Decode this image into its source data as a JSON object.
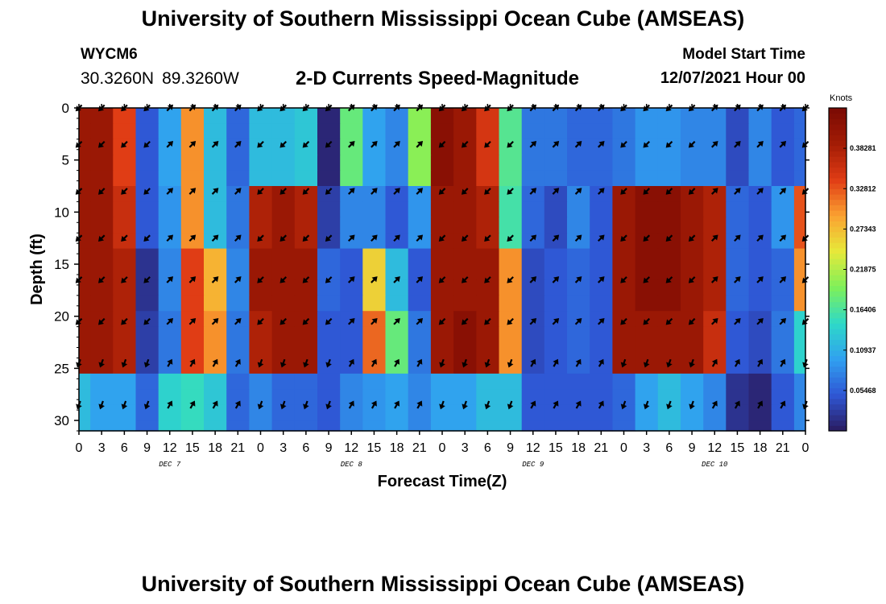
{
  "header": {
    "title": "University of Southern Mississippi Ocean Cube (AMSEAS)",
    "station": "WYCM6",
    "lat": "30.3260N",
    "lon": "89.3260W",
    "subtitle": "2-D Currents Speed-Magnitude",
    "model_start_label": "Model Start Time",
    "model_start_value": "12/07/2021 Hour 00"
  },
  "footer": {
    "title": "University of Southern Mississippi Ocean Cube (AMSEAS)"
  },
  "colors": {
    "colormap": [
      "#2a1a5e",
      "#2f56d4",
      "#30a0f0",
      "#2ed9c8",
      "#7ef05a",
      "#e6e93a",
      "#fba231",
      "#e03c15",
      "#a31c05",
      "#7a0a04"
    ],
    "arrow": "#000000",
    "frame": "#000000"
  },
  "chart_data": {
    "type": "heatmap",
    "title": "2-D Currents Speed-Magnitude",
    "xlabel": "Forecast Time(Z)",
    "ylabel": "Depth (ft)",
    "x_tick_labels": [
      "0",
      "3",
      "6",
      "9",
      "12",
      "15",
      "18",
      "21",
      "0",
      "3",
      "6",
      "9",
      "12",
      "15",
      "18",
      "21",
      "0",
      "3",
      "6",
      "9",
      "12",
      "15",
      "18",
      "21",
      "0",
      "3",
      "6",
      "9",
      "12",
      "15",
      "18",
      "21",
      "0"
    ],
    "day_labels": [
      "DEC 7",
      "DEC 8",
      "DEC 9",
      "DEC 10"
    ],
    "xlim_hours": [
      0,
      96
    ],
    "y_ticks": [
      0,
      5,
      10,
      15,
      20,
      25,
      30
    ],
    "ylim_ft": [
      0,
      31
    ],
    "colorbar": {
      "title": "Knots",
      "tick_labels": [
        "0.38281",
        "0.32812",
        "0.27343",
        "0.21875",
        "0.16406",
        "0.10937",
        "0.05468"
      ],
      "tick_values": [
        0.38281,
        0.32812,
        0.27343,
        0.21875,
        0.16406,
        0.10937,
        0.05468
      ],
      "range": [
        0,
        0.4375
      ]
    },
    "speed_units": "knots",
    "time_step_hours": 3,
    "depth_rows_ft": [
      0,
      1.5,
      3,
      4.5,
      6,
      7.5,
      9,
      10.5,
      12,
      13.5,
      15,
      16.5,
      18,
      19.5,
      21,
      22.5,
      24,
      25.5,
      27,
      28.5,
      30,
      31
    ],
    "speed_grid_bands": [
      {
        "rows_ft": [
          0,
          7.5
        ],
        "values": [
          0.4,
          0.4,
          0.34,
          0.05,
          0.1,
          0.3,
          0.12,
          0.06,
          0.12,
          0.12,
          0.13,
          0.01,
          0.18,
          0.1,
          0.08,
          0.2,
          0.42,
          0.4,
          0.35,
          0.17,
          0.07,
          0.07,
          0.06,
          0.06,
          0.07,
          0.09,
          0.09,
          0.08,
          0.08,
          0.04,
          0.08,
          0.05,
          0.06
        ]
      },
      {
        "rows_ft": [
          7.5,
          13.5
        ],
        "values": [
          0.4,
          0.4,
          0.36,
          0.05,
          0.09,
          0.3,
          0.12,
          0.07,
          0.38,
          0.4,
          0.38,
          0.03,
          0.08,
          0.08,
          0.05,
          0.09,
          0.4,
          0.4,
          0.38,
          0.16,
          0.06,
          0.04,
          0.08,
          0.05,
          0.4,
          0.42,
          0.42,
          0.4,
          0.38,
          0.06,
          0.05,
          0.09,
          0.33
        ]
      },
      {
        "rows_ft": [
          13.5,
          19.5
        ],
        "values": [
          0.4,
          0.4,
          0.38,
          0.02,
          0.08,
          0.34,
          0.28,
          0.08,
          0.4,
          0.4,
          0.4,
          0.06,
          0.05,
          0.26,
          0.12,
          0.05,
          0.4,
          0.4,
          0.4,
          0.3,
          0.04,
          0.05,
          0.06,
          0.05,
          0.4,
          0.42,
          0.42,
          0.4,
          0.38,
          0.06,
          0.05,
          0.06,
          0.3
        ]
      },
      {
        "rows_ft": [
          19.5,
          25.5
        ],
        "values": [
          0.4,
          0.4,
          0.38,
          0.03,
          0.07,
          0.34,
          0.3,
          0.07,
          0.38,
          0.4,
          0.4,
          0.05,
          0.05,
          0.32,
          0.18,
          0.07,
          0.4,
          0.42,
          0.4,
          0.3,
          0.04,
          0.05,
          0.06,
          0.05,
          0.4,
          0.4,
          0.4,
          0.4,
          0.36,
          0.05,
          0.04,
          0.07,
          0.14
        ]
      },
      {
        "rows_ft": [
          25.5,
          31
        ],
        "values": [
          0.12,
          0.1,
          0.1,
          0.06,
          0.14,
          0.15,
          0.13,
          0.06,
          0.08,
          0.06,
          0.06,
          0.05,
          0.08,
          0.09,
          0.1,
          0.08,
          0.1,
          0.1,
          0.12,
          0.12,
          0.05,
          0.05,
          0.05,
          0.05,
          0.06,
          0.1,
          0.12,
          0.1,
          0.08,
          0.02,
          0.01,
          0.05,
          0.08
        ]
      }
    ],
    "arrow_depths_ft": [
      0,
      3.5,
      8,
      12.5,
      16.5,
      20.5,
      24.5,
      28.5
    ],
    "arrow_direction_bands_deg": [
      {
        "depths_ft": [
          0,
          8
        ],
        "directions": [
          225,
          225,
          225,
          225,
          45,
          45,
          45,
          45,
          225,
          225,
          225,
          225,
          45,
          45,
          45,
          45,
          225,
          225,
          225,
          225,
          45,
          45,
          45,
          45,
          225,
          225,
          225,
          225,
          45,
          45,
          45,
          45,
          225
        ]
      },
      {
        "depths_ft": [
          12.5,
          20.5
        ],
        "directions": [
          225,
          225,
          225,
          225,
          45,
          45,
          45,
          45,
          225,
          225,
          225,
          225,
          45,
          45,
          45,
          45,
          225,
          225,
          225,
          225,
          45,
          45,
          45,
          45,
          225,
          225,
          225,
          225,
          45,
          45,
          45,
          45,
          225
        ]
      },
      {
        "depths_ft": [
          24.5,
          28.5
        ],
        "directions": [
          200,
          200,
          200,
          200,
          30,
          30,
          30,
          30,
          200,
          200,
          200,
          200,
          30,
          30,
          30,
          30,
          200,
          200,
          200,
          200,
          30,
          30,
          30,
          30,
          200,
          200,
          200,
          200,
          30,
          30,
          30,
          30,
          200
        ]
      }
    ]
  }
}
